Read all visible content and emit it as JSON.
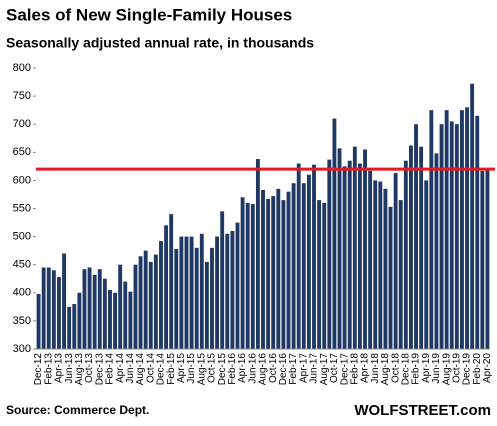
{
  "chart_data": {
    "type": "bar",
    "title": "Sales of New Single-Family Houses",
    "subtitle": "Seasonally adjusted annual rate, in thousands",
    "source": "Source: Commerce Dept.",
    "brand": "WOLFSTREET.com",
    "color": "#1f3864",
    "reference_line": {
      "value": 620,
      "color": "#e31b23"
    },
    "categories": [
      "Dec-12",
      null,
      "Feb-13",
      null,
      "Apr-13",
      null,
      "Jun-13",
      null,
      "Aug-13",
      null,
      "Oct-13",
      null,
      "Dec-13",
      null,
      "Feb-14",
      null,
      "Apr-14",
      null,
      "Jun-14",
      null,
      "Aug-14",
      null,
      "Oct-14",
      null,
      "Dec-14",
      null,
      "Feb-15",
      null,
      "Apr-15",
      null,
      "Jun-15",
      null,
      "Aug-15",
      null,
      "Oct-15",
      null,
      "Dec-15",
      null,
      "Feb-16",
      null,
      "Apr-16",
      null,
      "Jun-16",
      null,
      "Aug-16",
      null,
      "Oct-16",
      null,
      "Dec-16",
      null,
      "Feb-17",
      null,
      "Apr-17",
      null,
      "Jun-17",
      null,
      "Aug-17",
      null,
      "Oct-17",
      null,
      "Dec-17",
      null,
      "Feb-18",
      null,
      "Apr-18",
      null,
      "Jun-18",
      null,
      "Aug-18",
      null,
      "Oct-18",
      null,
      "Dec-18",
      null,
      "Feb-19",
      null,
      "Apr-19",
      null,
      "Jun-19",
      null,
      "Aug-19",
      null,
      "Oct-19",
      null,
      "Dec-19",
      null,
      "Feb-20",
      null,
      "Apr-20"
    ],
    "values": [
      398,
      445,
      445,
      440,
      428,
      470,
      375,
      380,
      400,
      442,
      445,
      432,
      442,
      425,
      405,
      400,
      450,
      420,
      402,
      450,
      465,
      475,
      455,
      468,
      492,
      520,
      540,
      478,
      500,
      500,
      500,
      480,
      505,
      455,
      480,
      500,
      545,
      505,
      510,
      525,
      570,
      560,
      558,
      638,
      583,
      567,
      572,
      585,
      565,
      580,
      595,
      630,
      595,
      610,
      628,
      565,
      560,
      637,
      710,
      657,
      625,
      635,
      660,
      630,
      655,
      617,
      600,
      598,
      585,
      553,
      613,
      565,
      635,
      662,
      700,
      660,
      600,
      725,
      648,
      700,
      725,
      705,
      700,
      725,
      730,
      772,
      715,
      617,
      620
    ],
    "ylim": [
      300,
      800
    ],
    "yticks": [
      300,
      350,
      400,
      450,
      500,
      550,
      600,
      650,
      700,
      750,
      800
    ]
  }
}
